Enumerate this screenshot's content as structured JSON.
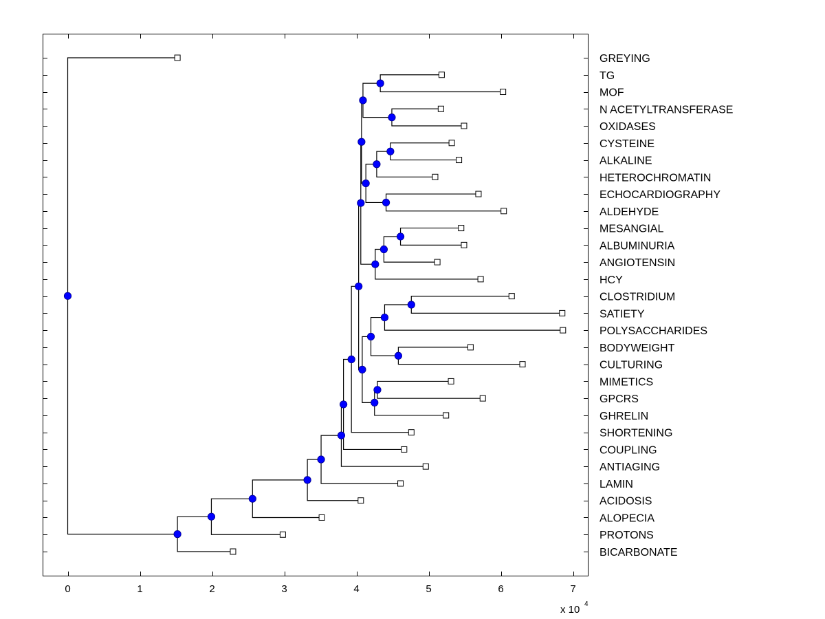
{
  "chart_data": {
    "type": "dendrogram",
    "title": "",
    "xlabel": "",
    "ylabel": "",
    "x_multiplier_label": "x 10",
    "x_multiplier_exponent": "4",
    "xlim": [
      -0.35,
      7.21
    ],
    "xticks": [
      0,
      1,
      2,
      3,
      4,
      5,
      6,
      7
    ],
    "xtick_labels": [
      "0",
      "1",
      "2",
      "3",
      "4",
      "5",
      "6",
      "7"
    ],
    "grid": false,
    "node_color": "#0000ff",
    "leaf_marker": "open-square",
    "leaves": [
      {
        "label": "GREYING",
        "x": 1.52
      },
      {
        "label": "TG",
        "x": 5.18
      },
      {
        "label": "MOF",
        "x": 6.03
      },
      {
        "label": "N ACETYLTRANSFERASE",
        "x": 5.17
      },
      {
        "label": "OXIDASES",
        "x": 5.49
      },
      {
        "label": "CYSTEINE",
        "x": 5.32
      },
      {
        "label": "ALKALINE",
        "x": 5.42
      },
      {
        "label": "HETEROCHROMATIN",
        "x": 5.09
      },
      {
        "label": "ECHOCARDIOGRAPHY",
        "x": 5.69
      },
      {
        "label": "ALDEHYDE",
        "x": 6.04
      },
      {
        "label": "MESANGIAL",
        "x": 5.45
      },
      {
        "label": "ALBUMINURIA",
        "x": 5.49
      },
      {
        "label": "ANGIOTENSIN",
        "x": 5.12
      },
      {
        "label": "HCY",
        "x": 5.72
      },
      {
        "label": "CLOSTRIDIUM",
        "x": 6.15
      },
      {
        "label": "SATIETY",
        "x": 6.85
      },
      {
        "label": "POLYSACCHARIDES",
        "x": 6.86
      },
      {
        "label": "BODYWEIGHT",
        "x": 5.58
      },
      {
        "label": "CULTURING",
        "x": 6.3
      },
      {
        "label": "MIMETICS",
        "x": 5.31
      },
      {
        "label": "GPCRS",
        "x": 5.75
      },
      {
        "label": "GHRELIN",
        "x": 5.24
      },
      {
        "label": "SHORTENING",
        "x": 4.76
      },
      {
        "label": "COUPLING",
        "x": 4.66
      },
      {
        "label": "ANTIAGING",
        "x": 4.96
      },
      {
        "label": "LAMIN",
        "x": 4.61
      },
      {
        "label": "ACIDOSIS",
        "x": 4.06
      },
      {
        "label": "ALOPECIA",
        "x": 3.52
      },
      {
        "label": "PROTONS",
        "x": 2.98
      },
      {
        "label": "BICARBONATE",
        "x": 2.29
      }
    ],
    "nodes": [
      {
        "id": "n_tg_mof",
        "x": 4.33,
        "children": [
          "L1",
          "L2"
        ]
      },
      {
        "id": "n_nat_oxi",
        "x": 4.49,
        "children": [
          "L3",
          "L4"
        ]
      },
      {
        "id": "n_top4",
        "x": 4.09,
        "children": [
          "n_tg_mof",
          "n_nat_oxi"
        ]
      },
      {
        "id": "n_cys_alk",
        "x": 4.47,
        "children": [
          "L5",
          "L6"
        ]
      },
      {
        "id": "n_het",
        "x": 4.28,
        "children": [
          "n_cys_alk",
          "L7"
        ]
      },
      {
        "id": "n_echo_ald",
        "x": 4.41,
        "children": [
          "L8",
          "L9"
        ]
      },
      {
        "id": "n_mid1",
        "x": 4.13,
        "children": [
          "n_het",
          "n_echo_ald"
        ]
      },
      {
        "id": "n_top9",
        "x": 4.07,
        "children": [
          "n_top4",
          "n_mid1"
        ]
      },
      {
        "id": "n_mes_alb",
        "x": 4.61,
        "children": [
          "L10",
          "L11"
        ]
      },
      {
        "id": "n_ang",
        "x": 4.38,
        "children": [
          "n_mes_alb",
          "L12"
        ]
      },
      {
        "id": "n_hcy",
        "x": 4.26,
        "children": [
          "n_ang",
          "L13"
        ]
      },
      {
        "id": "n_top13",
        "x": 4.06,
        "children": [
          "n_top9",
          "n_hcy"
        ]
      },
      {
        "id": "n_clo_sat",
        "x": 4.76,
        "children": [
          "L14",
          "L15"
        ]
      },
      {
        "id": "n_poly",
        "x": 4.39,
        "children": [
          "n_clo_sat",
          "L16"
        ]
      },
      {
        "id": "n_body_cult",
        "x": 4.58,
        "children": [
          "L17",
          "L18"
        ]
      },
      {
        "id": "n_poly_body",
        "x": 4.2,
        "children": [
          "n_poly",
          "n_body_cult"
        ]
      },
      {
        "id": "n_mim_gpcr",
        "x": 4.29,
        "children": [
          "L19",
          "L20"
        ]
      },
      {
        "id": "n_ghr",
        "x": 4.25,
        "children": [
          "n_mim_gpcr",
          "L21"
        ]
      },
      {
        "id": "n_low8",
        "x": 4.08,
        "children": [
          "n_poly_body",
          "n_ghr"
        ]
      },
      {
        "id": "n_big",
        "x": 4.03,
        "children": [
          "n_top13",
          "n_low8"
        ]
      },
      {
        "id": "n_short",
        "x": 3.93,
        "children": [
          "n_big",
          "L22"
        ]
      },
      {
        "id": "n_coup",
        "x": 3.82,
        "children": [
          "n_short",
          "L23"
        ]
      },
      {
        "id": "n_anti",
        "x": 3.79,
        "children": [
          "n_coup",
          "L24"
        ]
      },
      {
        "id": "n_lamin",
        "x": 3.51,
        "children": [
          "n_anti",
          "L25"
        ]
      },
      {
        "id": "n_acid",
        "x": 3.32,
        "children": [
          "n_lamin",
          "L26"
        ]
      },
      {
        "id": "n_alop",
        "x": 2.56,
        "children": [
          "n_acid",
          "L27"
        ]
      },
      {
        "id": "n_prot",
        "x": 1.99,
        "children": [
          "n_alop",
          "L28"
        ]
      },
      {
        "id": "n_bicarb",
        "x": 1.52,
        "children": [
          "n_prot",
          "L29"
        ]
      },
      {
        "id": "root",
        "x": 0.0,
        "children": [
          "L0",
          "n_bicarb"
        ]
      }
    ]
  }
}
